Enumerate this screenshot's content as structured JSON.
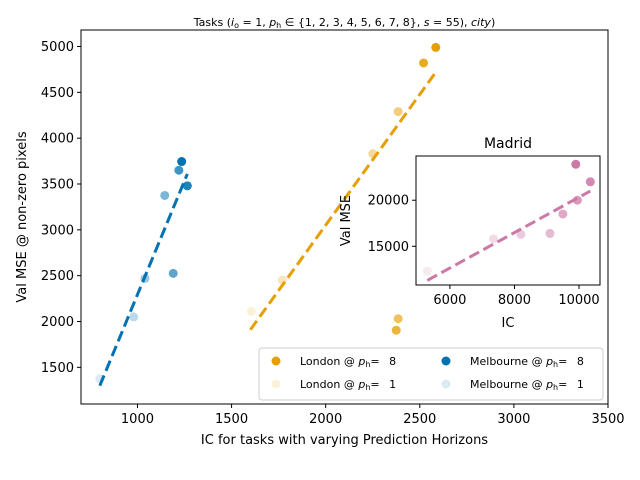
{
  "chart_data": [
    {
      "type": "scatter",
      "title": "Tasks ($i_o = 1, p_h \\in \\{1, 2, 3, 4, 5, 6, 7, 8\\}, s = 55), city)",
      "title_parts": {
        "prefix": "Tasks (",
        "io": "i",
        "io_sub": "o",
        "io_rest": " = 1, ",
        "ph": "p",
        "ph_sub": "h",
        "ph_rest": " ∈ {1, 2, 3, 4, 5, 6, 7, 8}, ",
        "s": "s",
        "s_rest": " = 55), ",
        "city": "city",
        "suffix": ")"
      },
      "xlabel": "IC for tasks with varying Prediction Horizons",
      "ylabel": "Val MSE @ non-zero pixels",
      "xlim": [
        700,
        3500
      ],
      "ylim": [
        1100,
        5180
      ],
      "xticks": [
        1000,
        1500,
        2000,
        2500,
        3000,
        3500
      ],
      "yticks": [
        1500,
        2000,
        2500,
        3000,
        3500,
        4000,
        4500,
        5000
      ],
      "grid": false,
      "legend_placement": "lower-right",
      "series": [
        {
          "name": "London",
          "color": "#E69F00",
          "points": [
            {
              "x": 1605,
              "y": 2110,
              "ph": 1
            },
            {
              "x": 1770,
              "y": 2450,
              "ph": 2
            },
            {
              "x": 2250,
              "y": 3830,
              "ph": 3
            },
            {
              "x": 2385,
              "y": 4290,
              "ph": 4
            },
            {
              "x": 2385,
              "y": 2030,
              "ph": 5
            },
            {
              "x": 2375,
              "y": 1905,
              "ph": 6
            },
            {
              "x": 2520,
              "y": 4820,
              "ph": 7
            },
            {
              "x": 2585,
              "y": 4990,
              "ph": 8
            }
          ],
          "trend": {
            "x": [
              1600,
              2585
            ],
            "y": [
              1910,
              4720
            ]
          }
        },
        {
          "name": "Melbourne",
          "color": "#0072B2",
          "points": [
            {
              "x": 800,
              "y": 1375,
              "ph": 1
            },
            {
              "x": 980,
              "y": 2050,
              "ph": 2
            },
            {
              "x": 1040,
              "y": 2470,
              "ph": 3
            },
            {
              "x": 1145,
              "y": 3375,
              "ph": 4
            },
            {
              "x": 1190,
              "y": 2525,
              "ph": 5
            },
            {
              "x": 1220,
              "y": 3650,
              "ph": 6
            },
            {
              "x": 1265,
              "y": 3480,
              "ph": 7
            },
            {
              "x": 1235,
              "y": 3745,
              "ph": 8
            }
          ],
          "trend": {
            "x": [
              800,
              1265
            ],
            "y": [
              1300,
              3610
            ]
          }
        }
      ],
      "legend": [
        {
          "city": "London",
          "ph": "8",
          "prefix": "London @ ",
          "alpha": 1.0
        },
        {
          "city": "Melbourne",
          "ph": "8",
          "prefix": "Melbourne @ ",
          "alpha": 1.0
        },
        {
          "city": "London",
          "ph": "1",
          "prefix": "London @ ",
          "alpha": 0.15
        },
        {
          "city": "Melbourne",
          "ph": "1",
          "prefix": "Melbourne @ ",
          "alpha": 0.15
        }
      ]
    },
    {
      "type": "scatter",
      "title": "Madrid",
      "xlabel": "IC",
      "ylabel": "Val MSE",
      "xlim": [
        4950,
        10650
      ],
      "ylim": [
        10800,
        24800
      ],
      "xticks": [
        6000,
        8000,
        10000
      ],
      "yticks": [
        15000,
        20000
      ],
      "grid": false,
      "series": [
        {
          "name": "Madrid",
          "color": "#CC79A7",
          "points": [
            {
              "x": 5300,
              "y": 12300,
              "ph": 1
            },
            {
              "x": 7350,
              "y": 15800,
              "ph": 2
            },
            {
              "x": 8200,
              "y": 16300,
              "ph": 3
            },
            {
              "x": 9100,
              "y": 16400,
              "ph": 4
            },
            {
              "x": 9500,
              "y": 18500,
              "ph": 5
            },
            {
              "x": 9950,
              "y": 20000,
              "ph": 6
            },
            {
              "x": 10350,
              "y": 22000,
              "ph": 7
            },
            {
              "x": 9900,
              "y": 23900,
              "ph": 8
            }
          ],
          "trend": {
            "x": [
              5300,
              10350
            ],
            "y": [
              11300,
              21000
            ]
          }
        }
      ]
    }
  ]
}
